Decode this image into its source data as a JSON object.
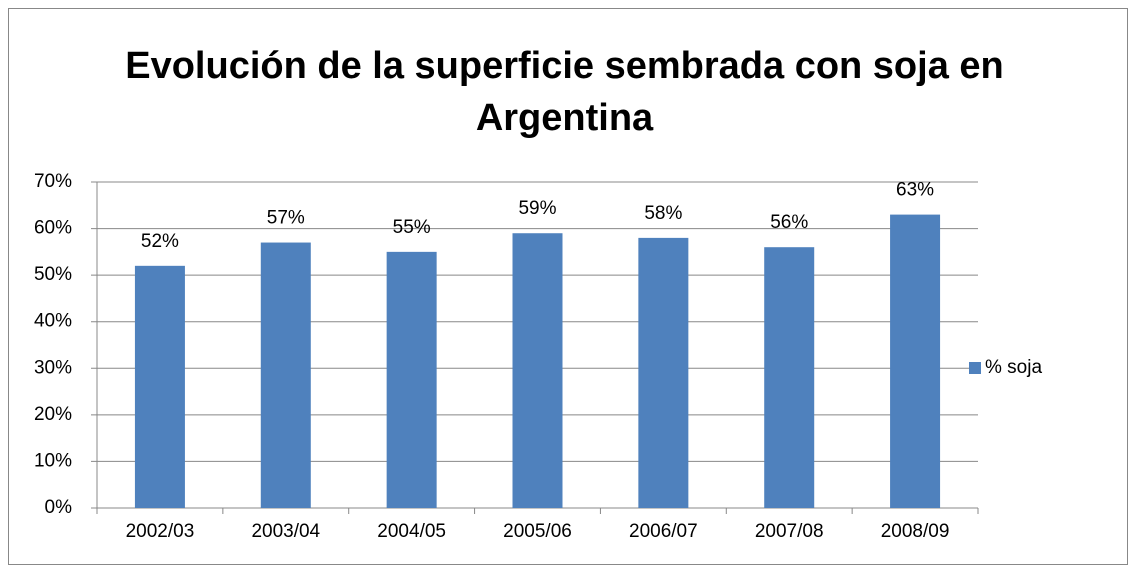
{
  "chart_data": {
    "type": "bar",
    "title": "Evolución de la superficie sembrada con soja en Argentina",
    "categories": [
      "2002/03",
      "2003/04",
      "2004/05",
      "2005/06",
      "2006/07",
      "2007/08",
      "2008/09"
    ],
    "series": [
      {
        "name": "% soja",
        "color": "#4f81bd",
        "values": [
          52,
          57,
          55,
          59,
          58,
          56,
          63
        ],
        "value_labels": [
          "52%",
          "57%",
          "55%",
          "59%",
          "58%",
          "56%",
          "63%"
        ]
      }
    ],
    "ylim": [
      0,
      70
    ],
    "yticks": [
      {
        "value": 0,
        "label": "0%"
      },
      {
        "value": 10,
        "label": "10%"
      },
      {
        "value": 20,
        "label": "20%"
      },
      {
        "value": 30,
        "label": "30%"
      },
      {
        "value": 40,
        "label": "40%"
      },
      {
        "value": 50,
        "label": "50%"
      },
      {
        "value": 60,
        "label": "60%"
      },
      {
        "value": 70,
        "label": "70%"
      }
    ],
    "grid": true,
    "legend": "right"
  }
}
